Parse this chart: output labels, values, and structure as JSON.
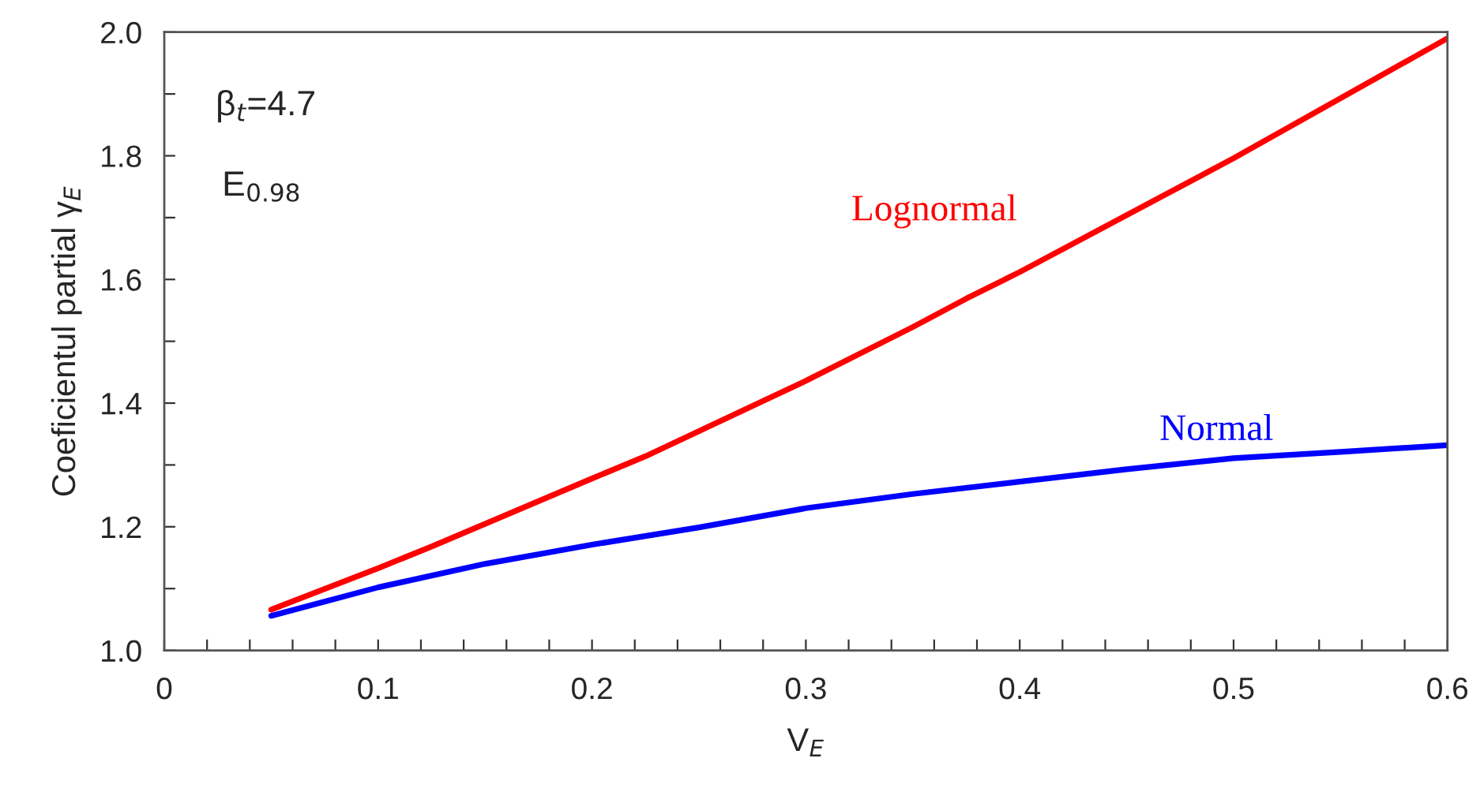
{
  "chart_data": {
    "type": "line",
    "xlabel": "V$_{E}$",
    "ylabel": "Coeficientul partial γ$_{E}$",
    "annotations": [
      "β$_{t}$=4.7",
      "E$_{0.98}$"
    ],
    "series": [
      {
        "name": "Lognormal",
        "color": "#ff0000",
        "x": [
          0.05,
          0.1,
          0.125,
          0.2,
          0.225,
          0.3,
          0.35,
          0.375,
          0.4,
          0.5,
          0.6
        ],
        "values": [
          1.066,
          1.133,
          1.168,
          1.278,
          1.314,
          1.436,
          1.523,
          1.569,
          1.612,
          1.796,
          1.99
        ]
      },
      {
        "name": "Normal",
        "color": "#0000ff",
        "x": [
          0.05,
          0.1,
          0.15,
          0.2,
          0.25,
          0.3,
          0.35,
          0.4,
          0.45,
          0.5,
          0.55,
          0.6
        ],
        "values": [
          1.056,
          1.102,
          1.14,
          1.171,
          1.199,
          1.23,
          1.253,
          1.273,
          1.293,
          1.311,
          1.321,
          1.332
        ]
      }
    ],
    "xlim": [
      0,
      0.6
    ],
    "ylim": [
      1.0,
      2.0
    ],
    "xticks": [
      0,
      {
        "value": 0.02,
        "label": null
      },
      {
        "value": 0.04,
        "label": null
      },
      {
        "value": 0.06,
        "label": null
      },
      {
        "value": 0.08,
        "label": null
      },
      0.1,
      {
        "value": 0.12,
        "label": null
      },
      {
        "value": 0.14,
        "label": null
      },
      {
        "value": 0.16,
        "label": null
      },
      {
        "value": 0.18,
        "label": null
      },
      0.2,
      {
        "value": 0.22,
        "label": null
      },
      {
        "value": 0.24,
        "label": null
      },
      {
        "value": 0.26,
        "label": null
      },
      {
        "value": 0.28,
        "label": null
      },
      0.3,
      {
        "value": 0.32,
        "label": null
      },
      {
        "value": 0.34,
        "label": null
      },
      {
        "value": 0.36,
        "label": null
      },
      {
        "value": 0.38,
        "label": null
      },
      0.4,
      {
        "value": 0.42,
        "label": null
      },
      {
        "value": 0.44,
        "label": null
      },
      {
        "value": 0.46,
        "label": null
      },
      {
        "value": 0.48,
        "label": null
      },
      0.5,
      {
        "value": 0.52,
        "label": null
      },
      {
        "value": 0.54,
        "label": null
      },
      {
        "value": 0.56,
        "label": null
      },
      {
        "value": 0.58,
        "label": null
      },
      0.6
    ],
    "yticks": [
      {
        "value": 1.0,
        "label": "1.0"
      },
      {
        "value": 1.1,
        "label": null
      },
      1.2,
      {
        "value": 1.3,
        "label": null
      },
      1.4,
      {
        "value": 1.5,
        "label": null
      },
      1.6,
      {
        "value": 1.7,
        "label": null
      },
      1.8,
      {
        "value": 1.9,
        "label": null
      },
      {
        "value": 2.0,
        "label": "2.0"
      }
    ],
    "grid": false,
    "legend": false,
    "marker": "none",
    "line_style": "solid"
  }
}
